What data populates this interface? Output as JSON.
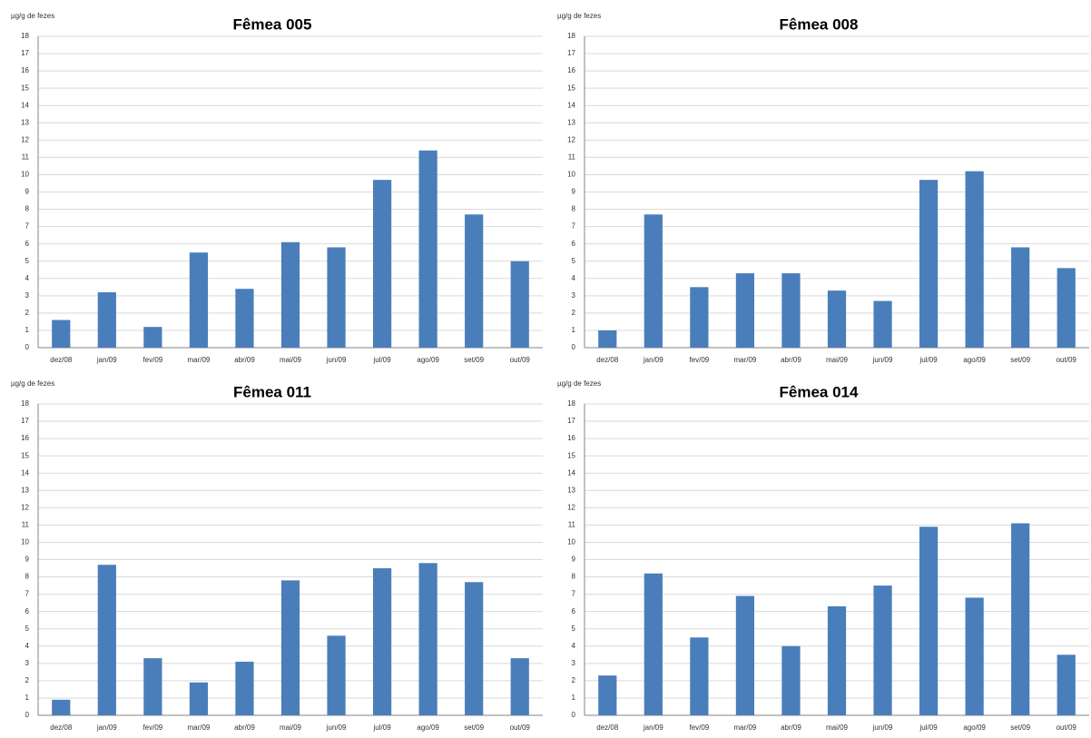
{
  "chart_data": [
    {
      "type": "bar",
      "title": "Fêmea 005",
      "y_label": "µg/g de fezes",
      "categories": [
        "dez/08",
        "jan/09",
        "fev/09",
        "mar/09",
        "abr/09",
        "mai/09",
        "jun/09",
        "jul/09",
        "ago/09",
        "set/09",
        "out/09"
      ],
      "values": [
        1.6,
        3.2,
        1.2,
        5.5,
        3.4,
        6.1,
        5.8,
        9.7,
        11.4,
        7.7,
        5.0
      ],
      "color": "#4a7ebb",
      "ylim": [
        0,
        18
      ],
      "yticks": [
        0,
        1,
        2,
        3,
        4,
        5,
        6,
        7,
        8,
        9,
        10,
        11,
        12,
        13,
        14,
        15,
        16,
        17,
        18
      ],
      "grid": true
    },
    {
      "type": "bar",
      "title": "Fêmea 008",
      "y_label": "µg/g de fezes",
      "categories": [
        "dez/08",
        "jan/09",
        "fev/09",
        "mar/09",
        "abr/09",
        "mai/09",
        "jun/09",
        "jul/09",
        "ago/09",
        "set/09",
        "out/09"
      ],
      "values": [
        1.0,
        7.7,
        3.5,
        4.3,
        4.3,
        3.3,
        2.7,
        9.7,
        10.2,
        5.8,
        4.6
      ],
      "color": "#4a7ebb",
      "ylim": [
        0,
        18
      ],
      "yticks": [
        0,
        1,
        2,
        3,
        4,
        5,
        6,
        7,
        8,
        9,
        10,
        11,
        12,
        13,
        14,
        15,
        16,
        17,
        18
      ],
      "grid": true
    },
    {
      "type": "bar",
      "title": "Fêmea 011",
      "y_label": "µg/g de fezes",
      "categories": [
        "dez/08",
        "jan/09",
        "fev/09",
        "mar/09",
        "abr/09",
        "mai/09",
        "jun/09",
        "jul/09",
        "ago/09",
        "set/09",
        "out/09"
      ],
      "values": [
        0.9,
        8.7,
        3.3,
        1.9,
        3.1,
        7.8,
        4.6,
        8.5,
        8.8,
        7.7,
        3.3
      ],
      "color": "#4a7ebb",
      "ylim": [
        0,
        18
      ],
      "yticks": [
        0,
        1,
        2,
        3,
        4,
        5,
        6,
        7,
        8,
        9,
        10,
        11,
        12,
        13,
        14,
        15,
        16,
        17,
        18
      ],
      "grid": true
    },
    {
      "type": "bar",
      "title": "Fêmea 014",
      "y_label": "µg/g de fezes",
      "categories": [
        "dez/08",
        "jan/09",
        "fev/09",
        "mar/09",
        "abr/09",
        "mai/09",
        "jun/09",
        "jul/09",
        "ago/09",
        "set/09",
        "out/09"
      ],
      "values": [
        2.3,
        8.2,
        4.5,
        6.9,
        4.0,
        6.3,
        7.5,
        10.9,
        6.8,
        11.1,
        3.5
      ],
      "color": "#4a7ebb",
      "ylim": [
        0,
        18
      ],
      "yticks": [
        0,
        1,
        2,
        3,
        4,
        5,
        6,
        7,
        8,
        9,
        10,
        11,
        12,
        13,
        14,
        15,
        16,
        17,
        18
      ],
      "grid": true
    }
  ]
}
